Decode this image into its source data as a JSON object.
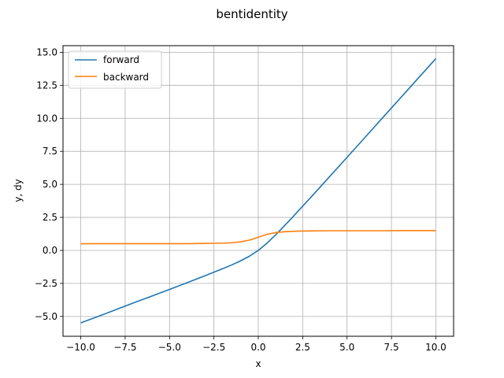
{
  "chart_data": {
    "type": "line",
    "title": "bentidentity",
    "xlabel": "x",
    "ylabel": "y, dy",
    "xlim": [
      -11,
      11
    ],
    "ylim": [
      -6.5,
      15.5
    ],
    "xticks": [
      -10.0,
      -7.5,
      -5.0,
      -2.5,
      0.0,
      2.5,
      5.0,
      7.5,
      10.0
    ],
    "xtick_labels": [
      "−10.0",
      "−7.5",
      "−5.0",
      "−2.5",
      "0.0",
      "2.5",
      "5.0",
      "7.5",
      "10.0"
    ],
    "yticks": [
      -5.0,
      -2.5,
      0.0,
      2.5,
      5.0,
      7.5,
      10.0,
      12.5,
      15.0
    ],
    "ytick_labels": [
      "−5.0",
      "−2.5",
      "0.0",
      "2.5",
      "5.0",
      "7.5",
      "10.0",
      "12.5",
      "15.0"
    ],
    "grid": true,
    "legend_position": "top-left",
    "x": [
      -10,
      -9,
      -8,
      -7,
      -6,
      -5,
      -4,
      -3,
      -2,
      -1.5,
      -1,
      -0.5,
      0,
      0.5,
      1,
      1.5,
      2,
      3,
      4,
      5,
      6,
      7,
      8,
      9,
      10
    ],
    "series": [
      {
        "name": "forward",
        "color": "#1f77b4",
        "values": [
          -5.49,
          -4.99,
          -4.47,
          -3.96,
          -3.46,
          -2.95,
          -2.44,
          -1.92,
          -1.38,
          -1.1,
          -0.79,
          -0.44,
          0.0,
          0.56,
          1.21,
          1.9,
          2.62,
          4.08,
          5.56,
          7.05,
          8.54,
          10.04,
          11.53,
          13.03,
          14.52
        ]
      },
      {
        "name": "backward",
        "color": "#ff7f0e",
        "values": [
          0.5,
          0.51,
          0.51,
          0.51,
          0.51,
          0.51,
          0.51,
          0.53,
          0.55,
          0.58,
          0.65,
          0.78,
          1.0,
          1.22,
          1.35,
          1.42,
          1.45,
          1.48,
          1.49,
          1.49,
          1.49,
          1.49,
          1.5,
          1.5,
          1.5
        ]
      }
    ]
  }
}
